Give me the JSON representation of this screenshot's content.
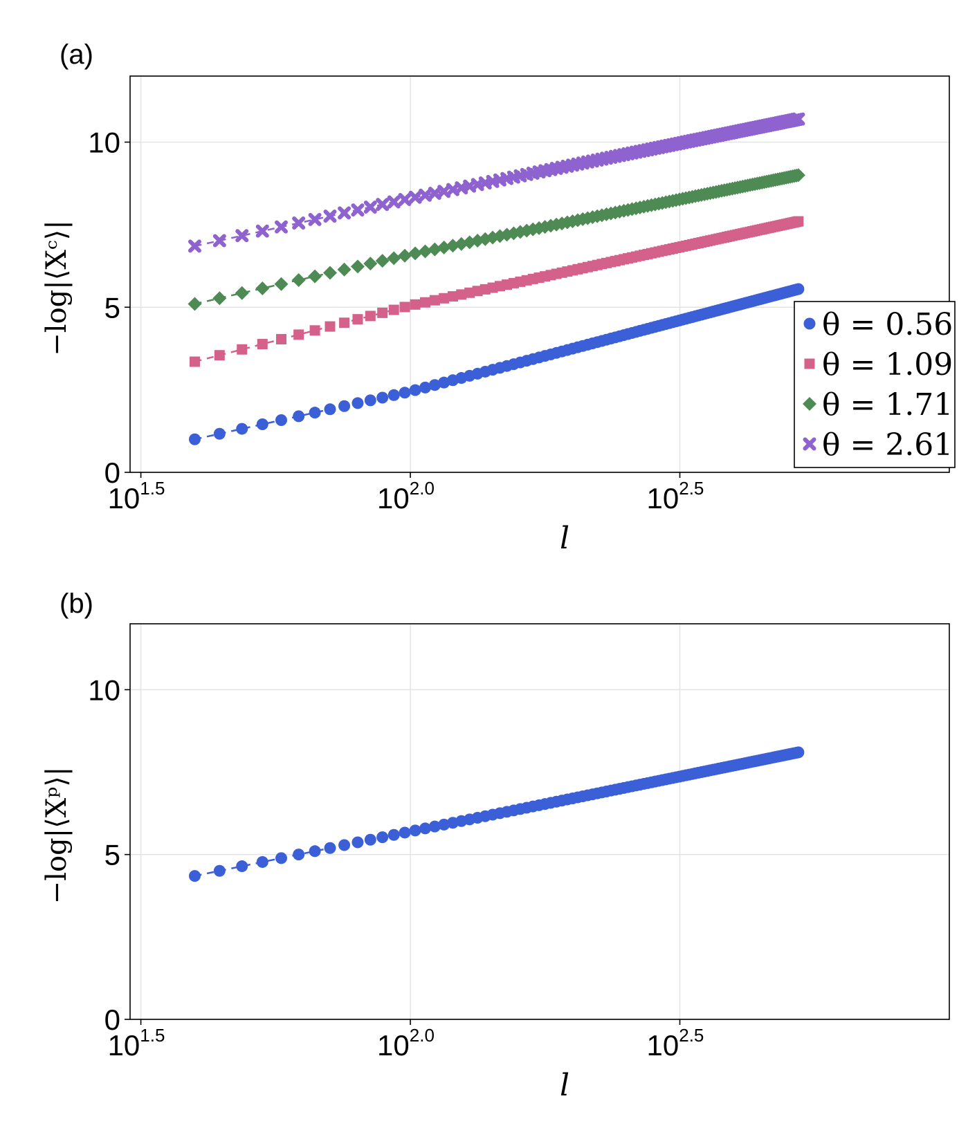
{
  "chart_data": [
    {
      "panel_label": "(a)",
      "type": "scatter",
      "x_scale": "log10",
      "xlim": [
        1.48,
        3.0
      ],
      "ylim": [
        0,
        12
      ],
      "grid": true,
      "xticks": [
        {
          "base": "10",
          "exp": "1.5",
          "value": 1.5
        },
        {
          "base": "10",
          "exp": "2.0",
          "value": 2.0
        },
        {
          "base": "10",
          "exp": "2.5",
          "value": 2.5
        }
      ],
      "yticks": [
        {
          "label": "0",
          "value": 0
        },
        {
          "label": "5",
          "value": 5
        },
        {
          "label": "10",
          "value": 10
        }
      ],
      "xlabel": "l",
      "ylabel": "−log|⟨Xᶜ⟩|",
      "legend_position": "lower-right",
      "series": [
        {
          "name": "θ = 0.56",
          "legend_label": "θ = 0.56",
          "marker": "circle",
          "color": "#3b5fd6",
          "log10_l_start": 1.6,
          "log10_l_end": 2.72,
          "y_start": 1.0,
          "y_at_log10_2": 2.45,
          "y_end": 5.55
        },
        {
          "name": "θ = 1.09",
          "legend_label": "θ = 1.09",
          "marker": "square",
          "color": "#d4618a",
          "log10_l_start": 1.6,
          "log10_l_end": 2.72,
          "y_start": 3.35,
          "y_at_log10_2": 5.05,
          "y_end": 7.6
        },
        {
          "name": "θ = 1.71",
          "legend_label": "θ = 1.71",
          "marker": "diamond",
          "color": "#4e8a54",
          "log10_l_start": 1.6,
          "log10_l_end": 2.72,
          "y_start": 5.1,
          "y_at_log10_2": 6.6,
          "y_end": 9.0
        },
        {
          "name": "θ = 2.61",
          "legend_label": "θ = 2.61",
          "marker": "cross",
          "color": "#8e63cf",
          "log10_l_start": 1.6,
          "log10_l_end": 2.72,
          "y_start": 6.85,
          "y_at_log10_2": 8.3,
          "y_end": 10.7
        }
      ]
    },
    {
      "panel_label": "(b)",
      "type": "scatter",
      "x_scale": "log10",
      "xlim": [
        1.48,
        3.0
      ],
      "ylim": [
        0,
        12
      ],
      "grid": true,
      "xticks": [
        {
          "base": "10",
          "exp": "1.5",
          "value": 1.5
        },
        {
          "base": "10",
          "exp": "2.0",
          "value": 2.0
        },
        {
          "base": "10",
          "exp": "2.5",
          "value": 2.5
        }
      ],
      "yticks": [
        {
          "label": "0",
          "value": 0
        },
        {
          "label": "5",
          "value": 5
        },
        {
          "label": "10",
          "value": 10
        }
      ],
      "xlabel": "l",
      "ylabel": "−log|⟨Xᵖ⟩|",
      "series": [
        {
          "name": "θ = 0.56",
          "marker": "circle",
          "color": "#3b5fd6",
          "log10_l_start": 1.6,
          "log10_l_end": 2.72,
          "y_start": 4.35,
          "y_at_log10_2": 5.7,
          "y_end": 8.1
        }
      ]
    }
  ]
}
